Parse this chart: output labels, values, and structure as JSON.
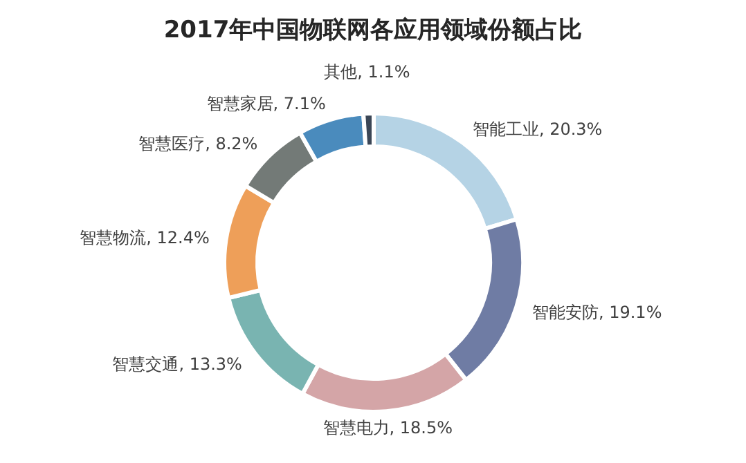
{
  "chart_data": {
    "type": "donut",
    "title": "2017年中国物联网各应用领域份额占比",
    "categories": [
      "智能工业",
      "智能安防",
      "智慧电力",
      "智慧交通",
      "智慧物流",
      "智慧医疗",
      "智慧家居",
      "其他"
    ],
    "values": [
      20.3,
      19.1,
      18.5,
      13.3,
      12.4,
      8.2,
      7.1,
      1.1
    ],
    "value_labels": [
      "20.3%",
      "19.1%",
      "18.5%",
      "13.3%",
      "12.4%",
      "8.2%",
      "7.1%",
      "1.1%"
    ],
    "colors": [
      "#b5d3e5",
      "#6f7ca4",
      "#d4a5a7",
      "#79b4b1",
      "#ee9f59",
      "#737a77",
      "#4a8bbd",
      "#3b4656"
    ]
  }
}
